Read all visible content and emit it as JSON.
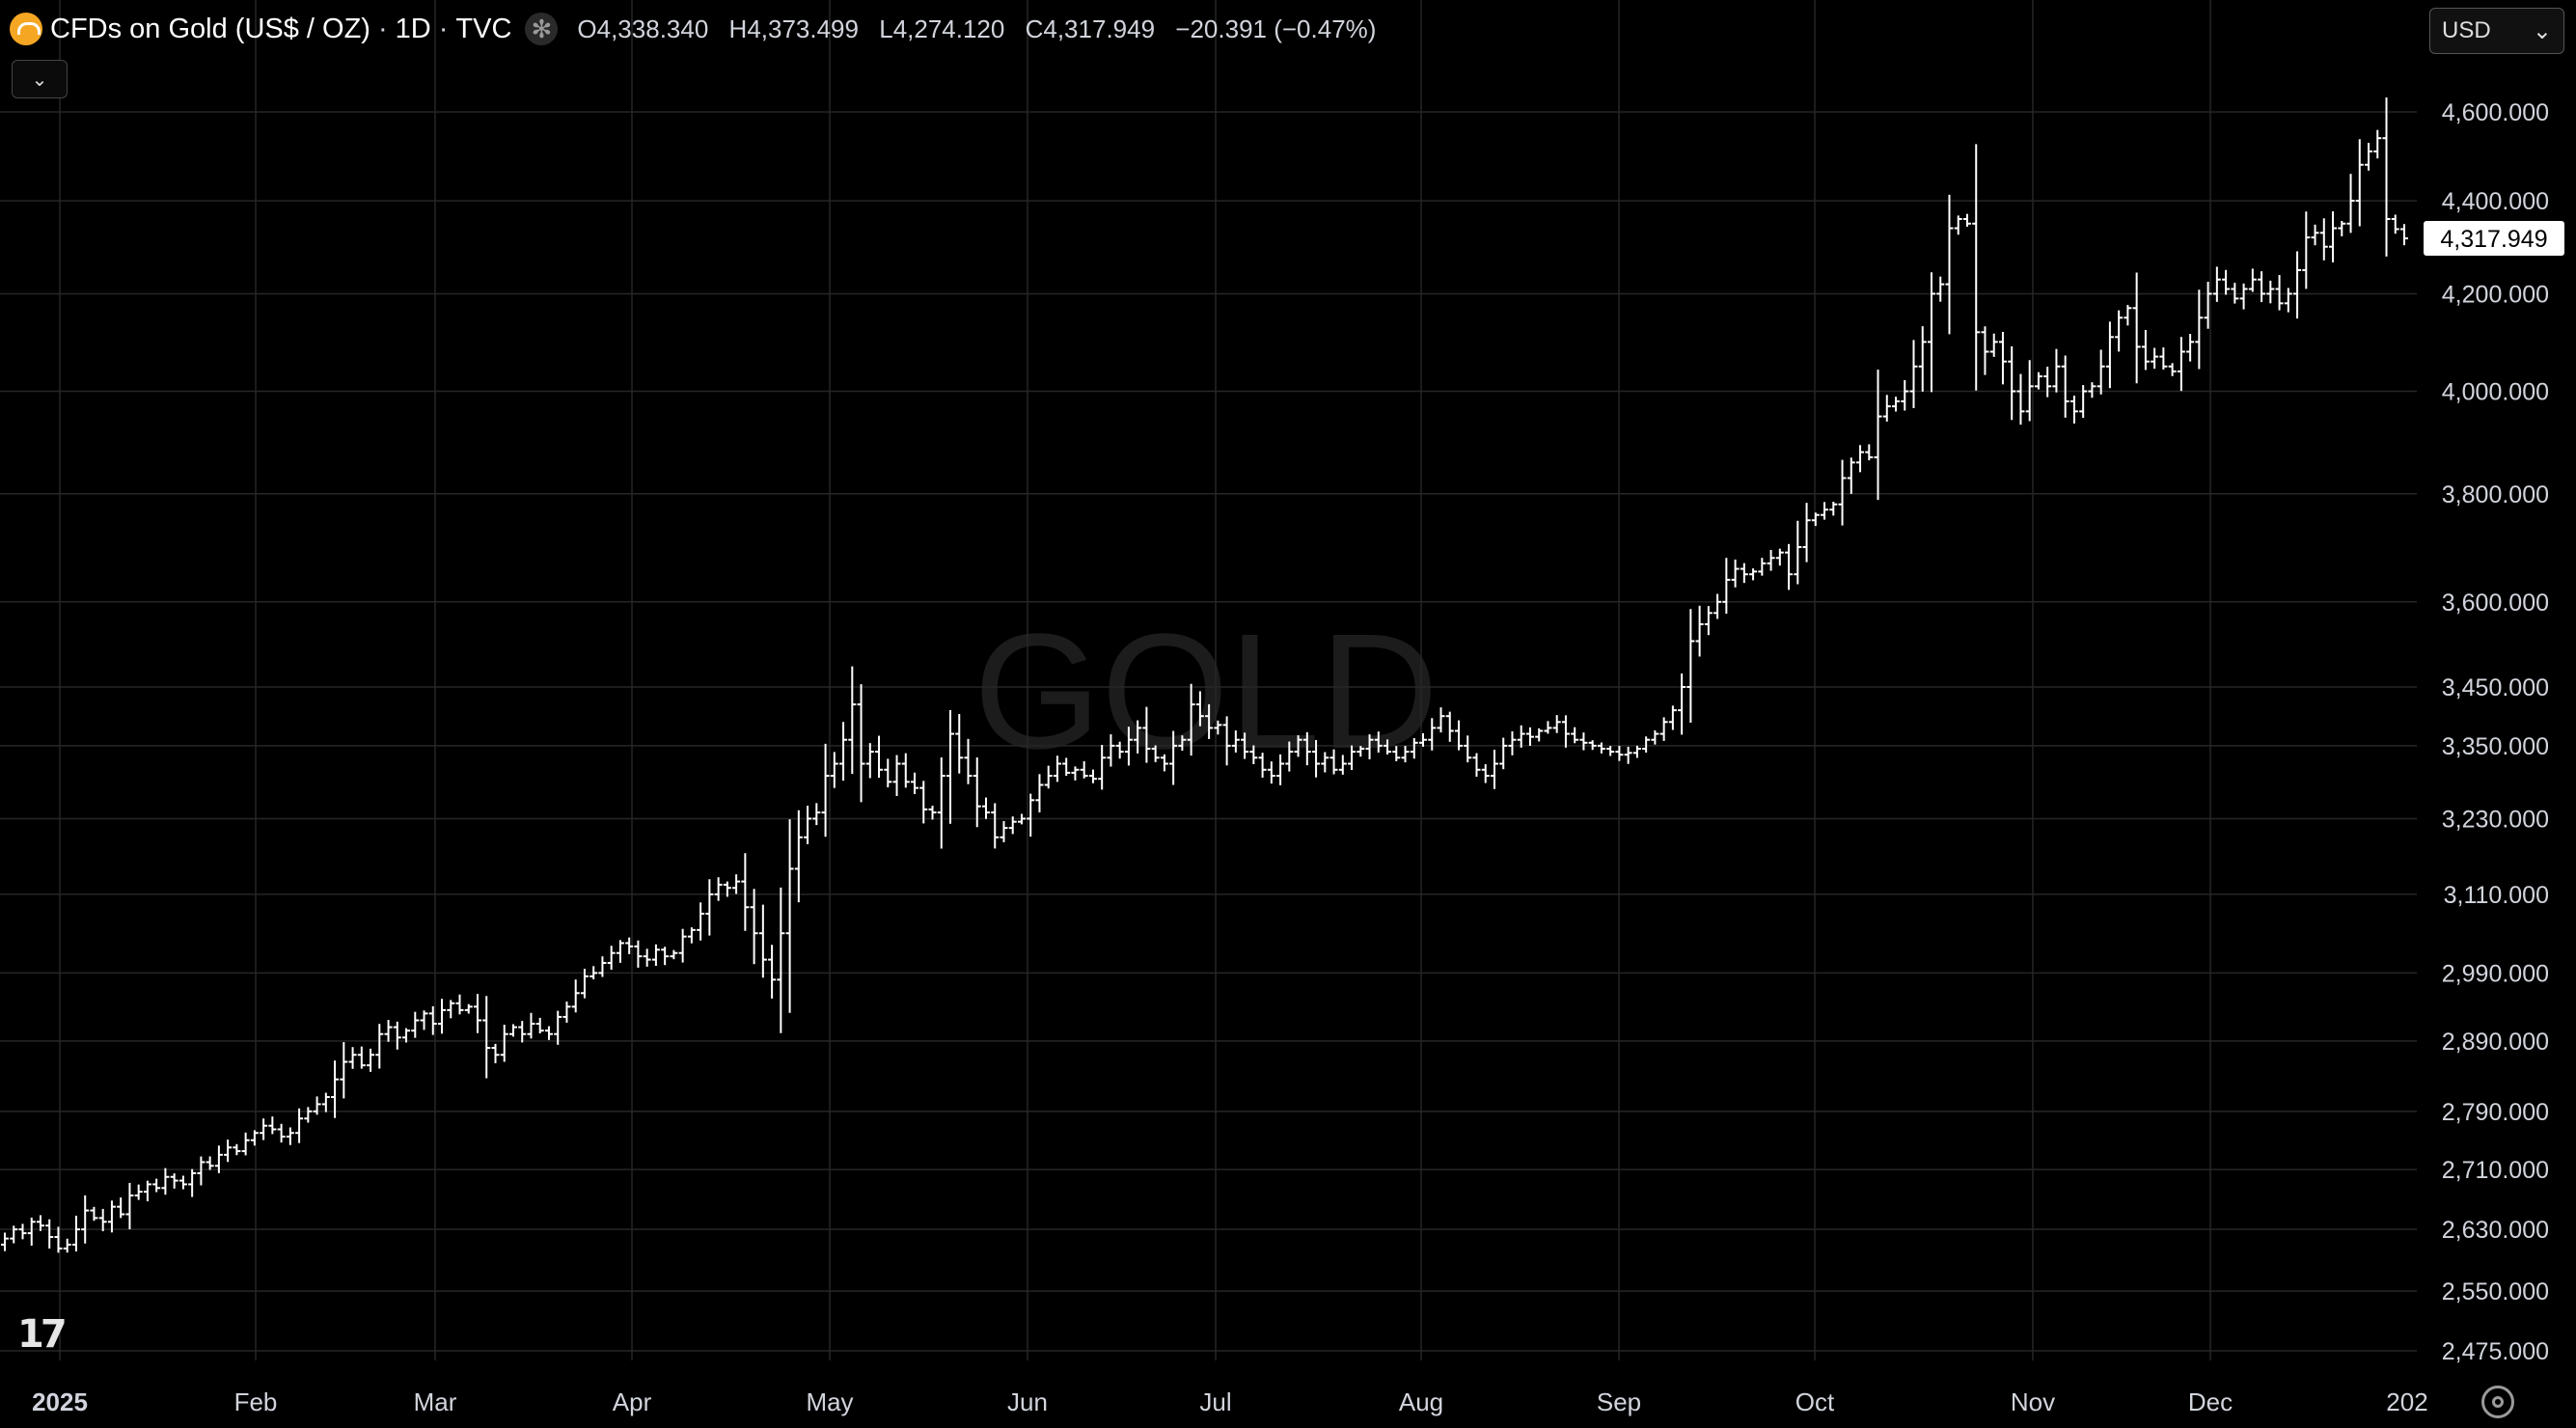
{
  "header": {
    "symbol": "CFDs on Gold (US$ / OZ)",
    "interval": "1D",
    "source": "TVC",
    "open_label": "O",
    "open": "4,338.340",
    "high_label": "H",
    "high": "4,373.499",
    "low_label": "L",
    "low": "4,274.120",
    "close_label": "C",
    "close": "4,317.949",
    "change": "−20.391 (−0.47%)",
    "collapse_icon": "chevron-down-icon"
  },
  "currency_selector": {
    "value": "USD"
  },
  "watermark": "GOLD",
  "colors": {
    "background": "#000000",
    "bars": "#ffffff",
    "grid": "#2a2a2a",
    "brand_icon": "#f5a623"
  },
  "chart_data": {
    "type": "ohlc-bar",
    "title": "CFDs on Gold (US$ / OZ) · 1D · TVC",
    "y_scale": "log",
    "ylim": [
      2420,
      4800
    ],
    "y_ticks": [
      4600,
      4400,
      4200,
      4000,
      3800,
      3600,
      3450,
      3350,
      3230,
      3110,
      2990,
      2890,
      2790,
      2710,
      2630,
      2550,
      2475
    ],
    "y_tick_labels": [
      "4,600.000",
      "4,400.000",
      "4,200.000",
      "4,000.000",
      "3,800.000",
      "3,600.000",
      "3,450.000",
      "3,350.000",
      "3,230.000",
      "3,110.000",
      "2,990.000",
      "2,890.000",
      "2,790.000",
      "2,710.000",
      "2,630.000",
      "2,550.000",
      "2,475.000"
    ],
    "x_labels": [
      "2025",
      "Feb",
      "Mar",
      "Apr",
      "May",
      "Jun",
      "Jul",
      "Aug",
      "Sep",
      "Oct",
      "Nov",
      "Dec",
      "202"
    ],
    "last_price_label": "4,317.949",
    "series": [
      {
        "closes": [
          2618,
          2630,
          2625,
          2640,
          2635,
          2620,
          2605,
          2610,
          2630,
          2655,
          2645,
          2640,
          2660,
          2650,
          2675,
          2680,
          2690,
          2685,
          2700,
          2695,
          2690,
          2705,
          2720,
          2715,
          2730,
          2740,
          2735,
          2750,
          2760,
          2770,
          2765,
          2755,
          2760,
          2780,
          2790,
          2800,
          2810,
          2835,
          2860,
          2870,
          2855,
          2870,
          2900,
          2910,
          2895,
          2905,
          2920,
          2930,
          2915,
          2935,
          2945,
          2935,
          2940,
          2920,
          2880,
          2870,
          2900,
          2910,
          2900,
          2915,
          2905,
          2900,
          2925,
          2940,
          2960,
          2985,
          2990,
          3005,
          3020,
          3035,
          3030,
          3015,
          3010,
          3025,
          3015,
          3020,
          3045,
          3055,
          3080,
          3110,
          3125,
          3120,
          3130,
          3090,
          3050,
          3010,
          2980,
          3050,
          3150,
          3200,
          3230,
          3240,
          3300,
          3320,
          3360,
          3420,
          3320,
          3340,
          3310,
          3290,
          3320,
          3290,
          3280,
          3245,
          3240,
          3300,
          3370,
          3330,
          3300,
          3250,
          3240,
          3200,
          3215,
          3225,
          3230,
          3260,
          3285,
          3300,
          3320,
          3305,
          3310,
          3300,
          3295,
          3330,
          3350,
          3340,
          3360,
          3380,
          3345,
          3330,
          3320,
          3350,
          3360,
          3420,
          3400,
          3380,
          3385,
          3350,
          3360,
          3340,
          3330,
          3310,
          3300,
          3320,
          3340,
          3360,
          3340,
          3320,
          3330,
          3310,
          3320,
          3340,
          3345,
          3360,
          3350,
          3340,
          3330,
          3340,
          3355,
          3360,
          3380,
          3400,
          3375,
          3350,
          3330,
          3310,
          3300,
          3320,
          3350,
          3360,
          3370,
          3365,
          3375,
          3380,
          3390,
          3370,
          3360,
          3355,
          3350,
          3345,
          3340,
          3335,
          3338,
          3345,
          3360,
          3370,
          3390,
          3410,
          3450,
          3530,
          3560,
          3580,
          3600,
          3640,
          3660,
          3650,
          3655,
          3670,
          3680,
          3690,
          3650,
          3700,
          3750,
          3760,
          3770,
          3780,
          3830,
          3860,
          3880,
          3870,
          3950,
          3970,
          3980,
          4000,
          4050,
          4100,
          4200,
          4220,
          4340,
          4360,
          4350,
          4120,
          4080,
          4100,
          4060,
          4000,
          3960,
          4010,
          4030,
          4010,
          4050,
          3980,
          3960,
          4000,
          4010,
          4050,
          4110,
          4150,
          4170,
          4090,
          4060,
          4070,
          4050,
          4040,
          4080,
          4100,
          4150,
          4200,
          4230,
          4210,
          4190,
          4210,
          4230,
          4200,
          4210,
          4180,
          4200,
          4250,
          4320,
          4330,
          4300,
          4340,
          4350,
          4400,
          4480,
          4510,
          4540,
          4360,
          4338,
          4318
        ]
      }
    ]
  }
}
